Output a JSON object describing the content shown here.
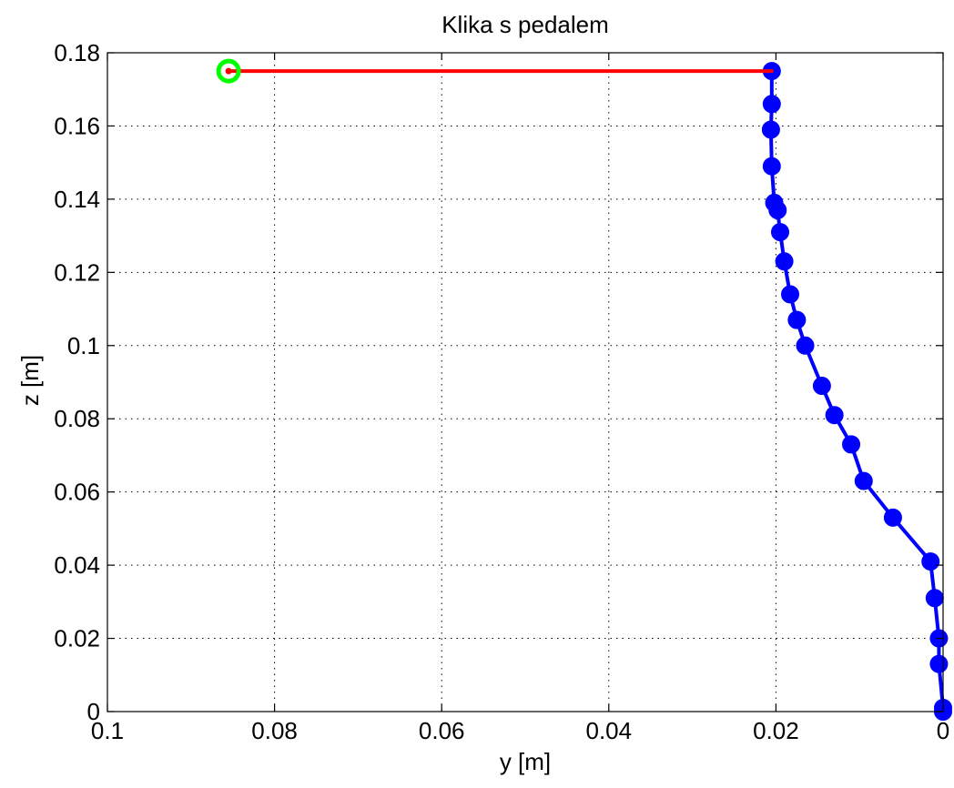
{
  "chart_data": {
    "type": "line",
    "title": "Klika s pedalem",
    "xlabel": "y [m]",
    "ylabel": "z [m]",
    "xlim": [
      0.1,
      0
    ],
    "ylim": [
      0,
      0.18
    ],
    "x_reversed": true,
    "grid": true,
    "x_ticks": [
      "0.1",
      "0.08",
      "0.06",
      "0.04",
      "0.02",
      "0"
    ],
    "y_ticks": [
      "0",
      "0.02",
      "0.04",
      "0.06",
      "0.08",
      "0.1",
      "0.12",
      "0.14",
      "0.16",
      "0.18"
    ],
    "colors": {
      "profile": "#0000ff",
      "crank": "#ff0000",
      "pedal": "#00ff00"
    },
    "series": [
      {
        "role": "profile",
        "style": "line-with-markers",
        "x": [
          0,
          0,
          0.0005,
          0.0005,
          0.001,
          0.0015,
          0.006,
          0.0095,
          0.011,
          0.013,
          0.0145,
          0.0165,
          0.0175,
          0.0183,
          0.019,
          0.0195,
          0.0198,
          0.0202,
          0.0205,
          0.0206,
          0.0205,
          0.0205
        ],
        "y": [
          0,
          0.001,
          0.013,
          0.02,
          0.031,
          0.041,
          0.053,
          0.063,
          0.073,
          0.081,
          0.089,
          0.1,
          0.107,
          0.114,
          0.123,
          0.131,
          0.137,
          0.139,
          0.149,
          0.159,
          0.166,
          0.175
        ]
      },
      {
        "role": "crank",
        "style": "line",
        "x": [
          0.0205,
          0.0855
        ],
        "y": [
          0.175,
          0.175
        ]
      },
      {
        "role": "pedal",
        "style": "ring-marker",
        "x": [
          0.0855
        ],
        "y": [
          0.175
        ]
      }
    ]
  }
}
